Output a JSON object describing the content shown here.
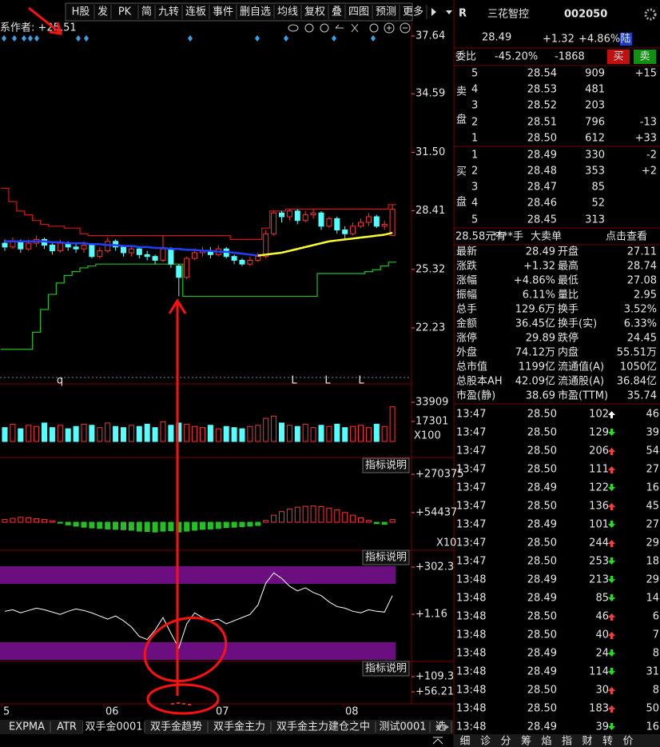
{
  "toolbar": [
    "H股",
    "发",
    "PK",
    "简",
    "九转",
    "连板",
    "事件",
    "删自选",
    "均线",
    "复权",
    "叠",
    "四图",
    "预测",
    "更多"
  ],
  "chart": {
    "info": "系作者: +25.51",
    "markers": [
      "q",
      "L",
      "L",
      "L"
    ],
    "price_axis": [
      37.64,
      34.59,
      {
        "value": 31.5,
        "label": "31.50"
      },
      28.41,
      25.32,
      22.23
    ],
    "volume_axis": [
      33909,
      17301
    ],
    "volume_unit": "X100",
    "ind1_axis": [
      {
        "value": 270375,
        "label": "+270375"
      },
      {
        "value": 54437,
        "label": "+54437"
      }
    ],
    "ind1_unit": "X10",
    "ind2_axis": [
      {
        "value": 302.3,
        "label": "+302.3"
      },
      {
        "value": 1.16,
        "label": "+1.16"
      }
    ],
    "ind3_axis": [
      {
        "value": 109.3,
        "label": "+109.3"
      },
      {
        "value": 56.21,
        "label": "+56.21"
      }
    ],
    "indicator_note": "指标说明",
    "dates": [
      "5",
      "06",
      "07",
      "08"
    ],
    "bars": [
      [
        26.7,
        26.5,
        26.9,
        26.3
      ],
      [
        26.5,
        26.8,
        27.0,
        26.4
      ],
      [
        26.8,
        26.4,
        26.9,
        26.2
      ],
      [
        26.4,
        26.7,
        26.9,
        26.3
      ],
      [
        26.7,
        26.9,
        27.1,
        26.5
      ],
      [
        26.9,
        26.6,
        27.0,
        26.4
      ],
      [
        26.6,
        26.3,
        26.7,
        26.1
      ],
      [
        26.3,
        26.7,
        26.9,
        26.2
      ],
      [
        26.7,
        26.5,
        26.8,
        26.3
      ],
      [
        26.5,
        26.4,
        26.7,
        26.2
      ],
      [
        26.4,
        26.6,
        26.8,
        26.2
      ],
      [
        26.6,
        26.0,
        26.7,
        25.9
      ],
      [
        26.0,
        26.3,
        26.5,
        25.9
      ],
      [
        26.3,
        26.8,
        27.0,
        26.2
      ],
      [
        26.8,
        26.5,
        26.9,
        26.3
      ],
      [
        26.5,
        26.2,
        26.6,
        26.0
      ],
      [
        26.2,
        26.4,
        26.6,
        26.0
      ],
      [
        26.4,
        26.1,
        26.5,
        25.9
      ],
      [
        26.1,
        26.0,
        26.3,
        25.8
      ],
      [
        26.0,
        25.8,
        26.1,
        25.6
      ],
      [
        25.8,
        26.4,
        27.1,
        25.7
      ],
      [
        26.4,
        25.6,
        26.5,
        25.4
      ],
      [
        25.5,
        24.9,
        25.6,
        23.9
      ],
      [
        24.9,
        25.9,
        26.0,
        24.8
      ],
      [
        25.9,
        26.2,
        26.4,
        25.8
      ],
      [
        26.2,
        26.3,
        26.5,
        26.0
      ],
      [
        26.3,
        26.1,
        26.5,
        25.9
      ],
      [
        26.1,
        26.4,
        26.6,
        26.0
      ],
      [
        26.4,
        26.0,
        26.5,
        25.9
      ],
      [
        26.0,
        25.8,
        26.1,
        25.6
      ],
      [
        25.8,
        25.6,
        25.9,
        25.5
      ],
      [
        25.6,
        25.8,
        26.0,
        25.5
      ],
      [
        25.8,
        26.0,
        26.2,
        25.7
      ],
      [
        26.0,
        27.2,
        27.4,
        25.9
      ],
      [
        27.2,
        28.3,
        28.4,
        27.1
      ],
      [
        28.3,
        28.1,
        28.4,
        27.8
      ],
      [
        28.1,
        28.4,
        28.5,
        27.9
      ],
      [
        28.4,
        27.9,
        28.5,
        27.7
      ],
      [
        27.9,
        28.2,
        28.4,
        27.8
      ],
      [
        28.2,
        28.3,
        28.5,
        28.0
      ],
      [
        28.3,
        27.6,
        28.4,
        27.4
      ],
      [
        27.6,
        28.0,
        28.1,
        27.5
      ],
      [
        28.0,
        27.4,
        28.1,
        27.2
      ],
      [
        27.4,
        27.2,
        27.6,
        26.9
      ],
      [
        27.2,
        27.6,
        27.8,
        27.1
      ],
      [
        27.6,
        27.8,
        28.0,
        27.5
      ],
      [
        27.8,
        28.1,
        28.3,
        27.6
      ],
      [
        28.1,
        27.6,
        28.2,
        27.5
      ],
      [
        27.6,
        27.7,
        27.9,
        27.4
      ],
      [
        27.11,
        28.49,
        28.74,
        27.08
      ]
    ],
    "ma": [
      26.8,
      26.8,
      26.8,
      26.8,
      26.8,
      26.8,
      26.75,
      26.75,
      26.7,
      26.7,
      26.7,
      26.65,
      26.65,
      26.6,
      26.6,
      26.55,
      26.55,
      26.5,
      26.5,
      26.45,
      26.45,
      26.4,
      26.4,
      26.35,
      26.35,
      26.3,
      26.3,
      26.25,
      26.25,
      26.2,
      26.15,
      26.1,
      26.05,
      26.1,
      26.15,
      26.2,
      26.3,
      26.4,
      26.5,
      26.6,
      26.7,
      26.8,
      26.85,
      26.9,
      26.95,
      27.0,
      27.05,
      27.1,
      27.15,
      27.25
    ],
    "upper": [
      29.6,
      28.9,
      28.4,
      28.2,
      27.9,
      27.7,
      27.6,
      27.6,
      27.5,
      27.5,
      27.2,
      27.1,
      27.1,
      27.1,
      27.1,
      27.1,
      27.1,
      27.1,
      27.1,
      27.1,
      27.1,
      27.1,
      27.1,
      27.1,
      27.1,
      27.1,
      27.1,
      27.1,
      27.1,
      26.9,
      26.9,
      26.9,
      26.9,
      27.5,
      28.4,
      28.4,
      28.5,
      28.5,
      28.5,
      28.5,
      28.5,
      28.5,
      28.5,
      28.5,
      28.5,
      28.5,
      28.5,
      28.5,
      28.5,
      28.74
    ],
    "lower": [
      21.1,
      21.1,
      21.1,
      21.1,
      22.0,
      23.2,
      24.0,
      24.6,
      25.0,
      25.2,
      25.4,
      25.5,
      25.6,
      25.6,
      25.6,
      25.6,
      25.6,
      25.6,
      25.6,
      25.6,
      25.6,
      25.6,
      25.6,
      23.9,
      23.9,
      23.9,
      23.9,
      23.9,
      23.9,
      23.9,
      23.9,
      23.9,
      23.9,
      23.9,
      23.9,
      23.9,
      23.9,
      23.9,
      23.9,
      23.9,
      25.1,
      25.1,
      25.1,
      25.1,
      25.1,
      25.1,
      25.2,
      25.3,
      25.5,
      25.7
    ],
    "volume": [
      12000,
      15000,
      11000,
      14000,
      13000,
      16000,
      12000,
      14000,
      11000,
      13000,
      15000,
      14000,
      12000,
      16000,
      13000,
      12000,
      14000,
      13000,
      15000,
      12000,
      17000,
      14000,
      16000,
      15000,
      13000,
      12000,
      14000,
      11000,
      13000,
      12000,
      11000,
      13000,
      14000,
      20000,
      22000,
      16000,
      14000,
      13000,
      15000,
      12000,
      14000,
      13000,
      15000,
      12000,
      13000,
      14000,
      12000,
      15000,
      13000,
      30000
    ],
    "ind1": [
      15000,
      22000,
      28000,
      25000,
      20000,
      15000,
      8000,
      -5000,
      -15000,
      -22000,
      -28000,
      -32000,
      -35000,
      -38000,
      -40000,
      -42000,
      -45000,
      -50000,
      -52000,
      -55000,
      -50000,
      -48000,
      -55000,
      -50000,
      -45000,
      -40000,
      -38000,
      -35000,
      -30000,
      -28000,
      -25000,
      -22000,
      -18000,
      10000,
      40000,
      60000,
      75000,
      85000,
      90000,
      92000,
      88000,
      80000,
      70000,
      55000,
      40000,
      25000,
      10000,
      -8000,
      -12000,
      15000
    ],
    "ind2": [
      20,
      30,
      10,
      25,
      40,
      30,
      15,
      0,
      20,
      35,
      25,
      10,
      -10,
      -30,
      -10,
      -40,
      -80,
      -140,
      -160,
      -100,
      -20,
      -120,
      -215,
      -60,
      10,
      -20,
      -40,
      -30,
      -60,
      -40,
      -20,
      0,
      60,
      200,
      265,
      230,
      180,
      150,
      170,
      140,
      120,
      80,
      50,
      40,
      20,
      10,
      30,
      20,
      15,
      120
    ]
  },
  "tabs": [
    "EXPMA",
    "ATR",
    "双手金0001",
    "双手金趋势",
    "双手金主力",
    "双手金主力建仓之中",
    "测试0001",
    "选"
  ],
  "quote": {
    "market": "R",
    "name": "三花智控",
    "code": "002050",
    "price": "28.49",
    "change": "+1.32",
    "pct": "+4.86%",
    "tag": "陆",
    "ratio_label": "委比",
    "ratio": "-45.20%",
    "diff": "-1868",
    "buy": "买",
    "sell": "卖",
    "sell_side": [
      "卖",
      "盘"
    ],
    "buy_side": [
      "买",
      "盘"
    ],
    "asks": [
      {
        "level": "5",
        "price": "28.54",
        "vol": "909",
        "chg": "+15"
      },
      {
        "level": "4",
        "price": "28.53",
        "vol": "481"
      },
      {
        "level": "3",
        "price": "28.52",
        "vol": "203"
      },
      {
        "level": "2",
        "price": "28.51",
        "vol": "796",
        "chg": "-13"
      },
      {
        "level": "1",
        "price": "28.50",
        "vol": "612",
        "chg": "+33"
      }
    ],
    "bids": [
      {
        "level": "1",
        "price": "28.49",
        "vol": "330",
        "chg": "-2"
      },
      {
        "level": "2",
        "price": "28.48",
        "vol": "353",
        "chg": "+2"
      },
      {
        "level": "3",
        "price": "28.47",
        "vol": "85"
      },
      {
        "level": "4",
        "price": "28.46",
        "vol": "52"
      },
      {
        "level": "5",
        "price": "28.45",
        "vol": "313"
      }
    ],
    "bigorder": [
      "28.58元有",
      "****手",
      "大卖单",
      "点击查看"
    ],
    "stats": [
      [
        "最新",
        "28.49",
        "开盘",
        "27.11"
      ],
      [
        "涨跌",
        "+1.32",
        "最高",
        "28.74"
      ],
      [
        "涨幅",
        "+4.86%",
        "最低",
        "27.08"
      ],
      [
        "振幅",
        "6.11%",
        "量比",
        "2.95"
      ],
      [
        "总手",
        "129.6万",
        "换手",
        "3.52%"
      ],
      [
        "金额",
        "36.45亿",
        "换手(实)",
        "6.33%"
      ],
      [
        "涨停",
        "29.89",
        "跌停",
        "24.45"
      ],
      [
        "外盘",
        "74.12万",
        "内盘",
        "55.51万"
      ],
      [
        "总市值",
        "1199亿",
        "流通值(A)",
        "1050亿"
      ],
      [
        "总股本AH",
        "42.09亿",
        "流通股(A)",
        "36.84亿"
      ],
      [
        "市盈(静)",
        "38.69",
        "市盈(TTM)",
        "35.74"
      ]
    ],
    "trades": [
      {
        "time": "13:47",
        "price": "28.50",
        "vol": "102",
        "dir": "up",
        "num": "46"
      },
      {
        "time": "13:47",
        "price": "28.50",
        "vol": "129",
        "dir": "down",
        "num": "39"
      },
      {
        "time": "13:47",
        "price": "28.50",
        "vol": "206",
        "dir": "up",
        "num": "54"
      },
      {
        "time": "13:47",
        "price": "28.50",
        "vol": "111",
        "dir": "up",
        "num": "27"
      },
      {
        "time": "13:47",
        "price": "28.49",
        "vol": "122",
        "dir": "down",
        "num": "16"
      },
      {
        "time": "13:47",
        "price": "28.50",
        "vol": "136",
        "dir": "up",
        "num": "45"
      },
      {
        "time": "13:47",
        "price": "28.49",
        "vol": "101",
        "dir": "down",
        "num": "27"
      },
      {
        "time": "13:47",
        "price": "28.50",
        "vol": "244",
        "dir": "up",
        "num": "29"
      },
      {
        "time": "13:47",
        "price": "28.50",
        "vol": "253",
        "dir": "down",
        "num": "18"
      },
      {
        "time": "13:48",
        "price": "28.49",
        "vol": "213",
        "dir": "down",
        "num": "29"
      },
      {
        "time": "13:48",
        "price": "28.49",
        "vol": "85",
        "dir": "down",
        "num": "14"
      },
      {
        "time": "13:48",
        "price": "28.50",
        "vol": "46",
        "dir": "up",
        "num": "6"
      },
      {
        "time": "13:48",
        "price": "28.50",
        "vol": "40",
        "dir": "up",
        "num": "7"
      },
      {
        "time": "13:48",
        "price": "28.49",
        "vol": "24",
        "dir": "down",
        "num": "8"
      },
      {
        "time": "13:48",
        "price": "28.49",
        "vol": "114",
        "dir": "down",
        "num": "31"
      },
      {
        "time": "13:48",
        "price": "28.50",
        "vol": "30",
        "dir": "up",
        "num": "8"
      },
      {
        "time": "13:48",
        "price": "28.50",
        "vol": "183",
        "dir": "up",
        "num": "50"
      },
      {
        "time": "13:48",
        "price": "28.49",
        "vol": "39",
        "dir": "down",
        "num": "16"
      }
    ],
    "side_tabs": [
      "细",
      "诊",
      "分",
      "筹",
      "焰",
      "指",
      "财",
      "转",
      "价"
    ]
  }
}
